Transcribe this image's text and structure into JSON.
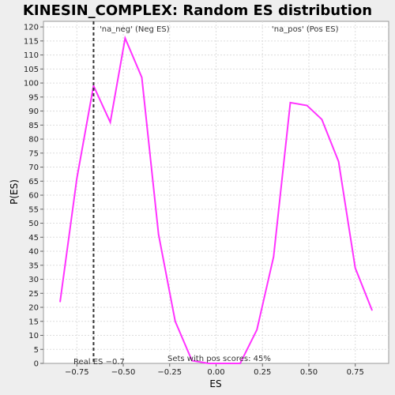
{
  "chart_data": {
    "type": "line",
    "title": "KINESIN_COMPLEX: Random ES distribution",
    "xlabel": "ES",
    "ylabel": "P(ES)",
    "xlim": [
      -0.93,
      0.93
    ],
    "ylim": [
      0,
      122
    ],
    "x_ticks": [
      -0.75,
      -0.5,
      -0.25,
      0.0,
      0.25,
      0.5,
      0.75
    ],
    "x_tick_labels": [
      "−0.75",
      "−0.50",
      "−0.25",
      "0.00",
      "0.25",
      "0.50",
      "0.75"
    ],
    "y_ticks": [
      0,
      5,
      10,
      15,
      20,
      25,
      30,
      35,
      40,
      45,
      50,
      55,
      60,
      65,
      70,
      75,
      80,
      85,
      90,
      95,
      100,
      105,
      110,
      115,
      120
    ],
    "grid": true,
    "series": [
      {
        "color": "#ff33ff",
        "x": [
          -0.84,
          -0.75,
          -0.66,
          -0.57,
          -0.49,
          -0.4,
          -0.31,
          -0.22,
          -0.13,
          -0.04,
          0.04,
          0.13,
          0.22,
          0.31,
          0.4,
          0.49,
          0.57,
          0.66,
          0.75,
          0.84
        ],
        "y": [
          22,
          66,
          99,
          86,
          116,
          102,
          46,
          15,
          1,
          0,
          0,
          0,
          12,
          38,
          93,
          92,
          87,
          72,
          34,
          19
        ]
      }
    ],
    "real_es": {
      "value": -0.66,
      "label": "Real ES −0.7"
    },
    "annotations": {
      "neg_label": "'na_neg' (Neg ES)",
      "pos_label": "'na_pos' (Pos ES)",
      "bottom_note": "Sets with pos scores: 45%"
    },
    "colors": {
      "line": "#ff33ff",
      "neg_text": "#3333cc",
      "pos_text": "#ff3333",
      "grid": "#dddddd",
      "real_es_line": "#333333",
      "background": "#eeeeee",
      "plot_background": "#ffffff"
    }
  }
}
